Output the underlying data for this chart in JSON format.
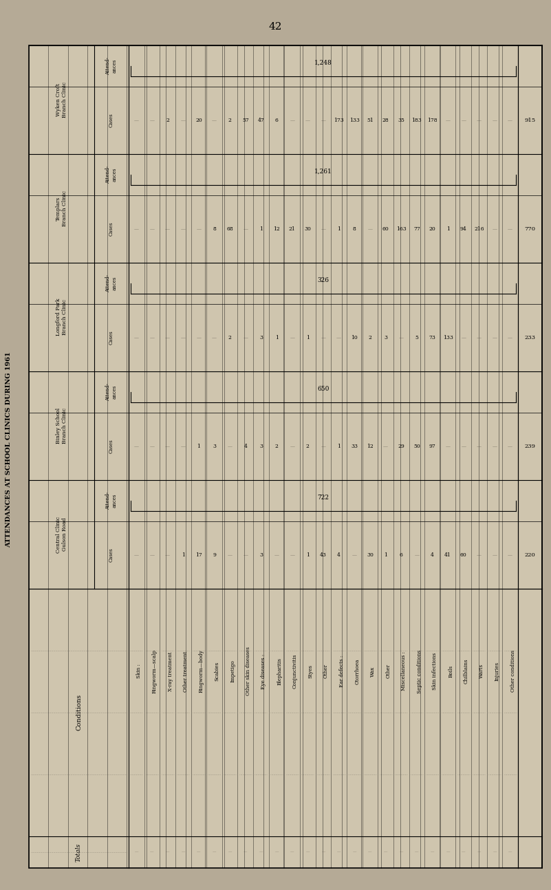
{
  "title": "ATTENDANCES AT SCHOOL CLINICS DURING 1961",
  "page_number": "42",
  "bg_color": "#b5aa96",
  "table_bg": "#cfc5ae",
  "conditions": [
    "Skin :",
    "Ringworm—scalp",
    "X-ray treatment",
    "Other treatment",
    "Ringworm—body",
    "Scabies",
    "Impetigo",
    "Other skin diseases",
    "Eye diseases :",
    "Blepharitis",
    "Conjunctivitis",
    "Styes",
    "Other",
    "Ear defects :",
    "Otorrhoea",
    "Wax",
    "Other",
    "Miscellaneous :",
    "Septic conditions",
    "Skin infections",
    "Boils",
    "Chilblains",
    "Warts",
    "Injuries",
    "Other conditions"
  ],
  "is_section_header": [
    true,
    false,
    false,
    false,
    false,
    false,
    false,
    false,
    true,
    false,
    false,
    false,
    false,
    true,
    false,
    false,
    false,
    true,
    false,
    false,
    false,
    false,
    false,
    false,
    false
  ],
  "clinics": [
    {
      "name": "Central Clinic\nGulson Road",
      "cases": [
        "",
        "",
        "",
        "1",
        "17",
        "9",
        "",
        "",
        "3",
        "",
        "",
        "1",
        "43",
        "4",
        "",
        "30",
        "1",
        "6",
        "",
        "4",
        "41",
        "60",
        "",
        "",
        ""
      ],
      "attend": "722"
    },
    {
      "name": "Binley School\nBranch Clinic",
      "cases": [
        "",
        "",
        "",
        "",
        "1",
        "3",
        "",
        "4",
        "3",
        "2",
        "",
        "2",
        "",
        "1",
        "33",
        "12",
        "",
        "29",
        "50",
        "97",
        "",
        "",
        "",
        "",
        ""
      ],
      "attend": "650"
    },
    {
      "name": "Longford Park\nBranch Clinic",
      "cases": [
        "",
        "",
        "",
        "",
        "",
        "",
        "2",
        "",
        "3",
        "1",
        "",
        "1",
        "",
        "",
        "10",
        "2",
        "3",
        "",
        "5",
        "73",
        "133",
        "",
        "",
        "",
        ""
      ],
      "attend": "326"
    },
    {
      "name": "Templars\nBranch Clinic",
      "cases": [
        "",
        "",
        "",
        "",
        "",
        "8",
        "68",
        "",
        "1",
        "12",
        "21",
        "30",
        "",
        "1",
        "8",
        "",
        "60",
        "163",
        "77",
        "20",
        "1",
        "94",
        "216",
        "",
        ""
      ],
      "attend": "1,261"
    },
    {
      "name": "Wyken Croft\nBranch Clinic",
      "cases": [
        "",
        "",
        "2",
        "",
        "20",
        "",
        "2",
        "57",
        "47",
        "6",
        "",
        "",
        "",
        "173",
        "133",
        "51",
        "28",
        "35",
        "183",
        "178",
        "",
        "",
        "",
        "",
        ""
      ],
      "attend": "1,248"
    }
  ],
  "totals": [
    "220",
    "239",
    "233",
    "770",
    "915"
  ]
}
